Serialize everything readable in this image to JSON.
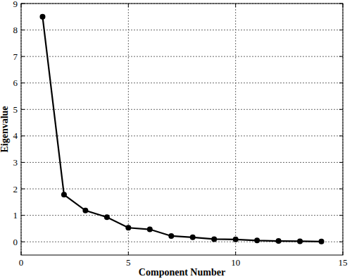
{
  "chart_data": {
    "type": "line",
    "x_label": "Component Number",
    "y_label": "Eigenvalue",
    "x": [
      1,
      2,
      3,
      4,
      5,
      6,
      7,
      8,
      9,
      10,
      11,
      12,
      13,
      14
    ],
    "values": [
      8.5,
      1.78,
      1.18,
      0.93,
      0.53,
      0.47,
      0.22,
      0.17,
      0.1,
      0.09,
      0.05,
      0.03,
      0.02,
      0.01
    ],
    "color": "#000000",
    "marker": "circle",
    "line_style": "solid",
    "xlim": [
      0,
      15
    ],
    "xticks": [
      0,
      5,
      10,
      15
    ],
    "ylim": [
      -0.5,
      9
    ],
    "yticks": [
      0,
      1,
      2,
      3,
      4,
      5,
      6,
      7,
      8,
      9
    ],
    "grid": true
  }
}
